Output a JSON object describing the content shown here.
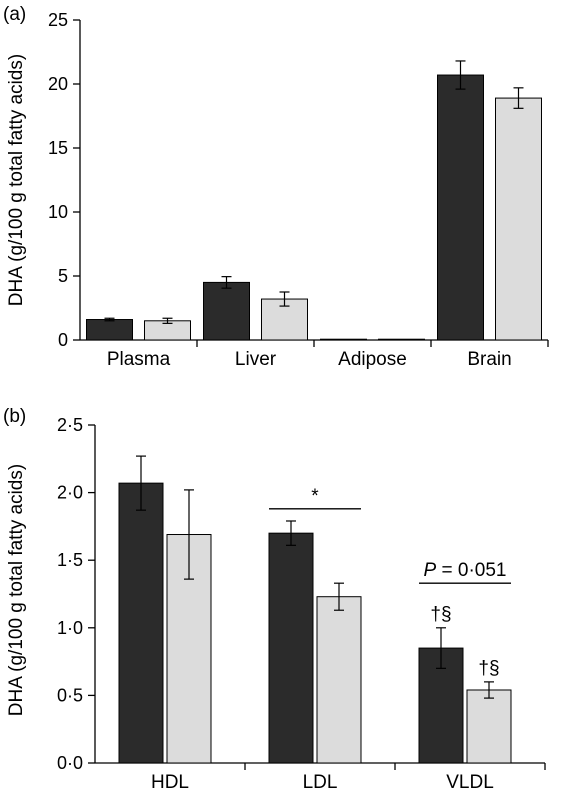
{
  "colors": {
    "series_dark": "#2b2b2b",
    "series_light": "#dcdcdc",
    "axis": "#000000"
  },
  "chart_data": [
    {
      "type": "bar",
      "panel_label": "(a)",
      "ylabel": "DHA (g/100 g total fatty acids)",
      "ylim": [
        0,
        25
      ],
      "yticks": [
        "0",
        "5",
        "10",
        "15",
        "20",
        "25"
      ],
      "categories": [
        "Plasma",
        "Liver",
        "Adipose",
        "Brain"
      ],
      "series": [
        {
          "color": "#2b2b2b",
          "values": [
            1.6,
            4.5,
            0.05,
            20.7
          ],
          "errors": [
            0.1,
            0.45,
            0.0,
            1.1
          ]
        },
        {
          "color": "#dcdcdc",
          "values": [
            1.5,
            3.2,
            0.05,
            18.9
          ],
          "errors": [
            0.2,
            0.55,
            0.0,
            0.8
          ]
        }
      ],
      "annotations": []
    },
    {
      "type": "bar",
      "panel_label": "(b)",
      "ylabel": "DHA (g/100 g total fatty acids)",
      "ylim": [
        0,
        2.5
      ],
      "yticks": [
        "0·0",
        "0·5",
        "1·0",
        "1·5",
        "2·0",
        "2·5"
      ],
      "categories": [
        "HDL",
        "LDL",
        "VLDL"
      ],
      "series": [
        {
          "color": "#2b2b2b",
          "values": [
            2.07,
            1.7,
            0.85
          ],
          "errors": [
            0.2,
            0.09,
            0.15
          ]
        },
        {
          "color": "#dcdcdc",
          "values": [
            1.69,
            1.23,
            0.54
          ],
          "errors": [
            0.33,
            0.1,
            0.06
          ]
        }
      ],
      "annotations": [
        {
          "text": "*",
          "category": "LDL",
          "span": "both",
          "kind": "bracket",
          "level": 1.88
        },
        {
          "text": "P = 0·051",
          "category": "VLDL",
          "span": "both",
          "kind": "bracket",
          "level": 1.33
        },
        {
          "text": "†§",
          "category": "VLDL",
          "series": 0,
          "kind": "bar-label"
        },
        {
          "text": "†§",
          "category": "VLDL",
          "series": 1,
          "kind": "bar-label"
        }
      ]
    }
  ]
}
